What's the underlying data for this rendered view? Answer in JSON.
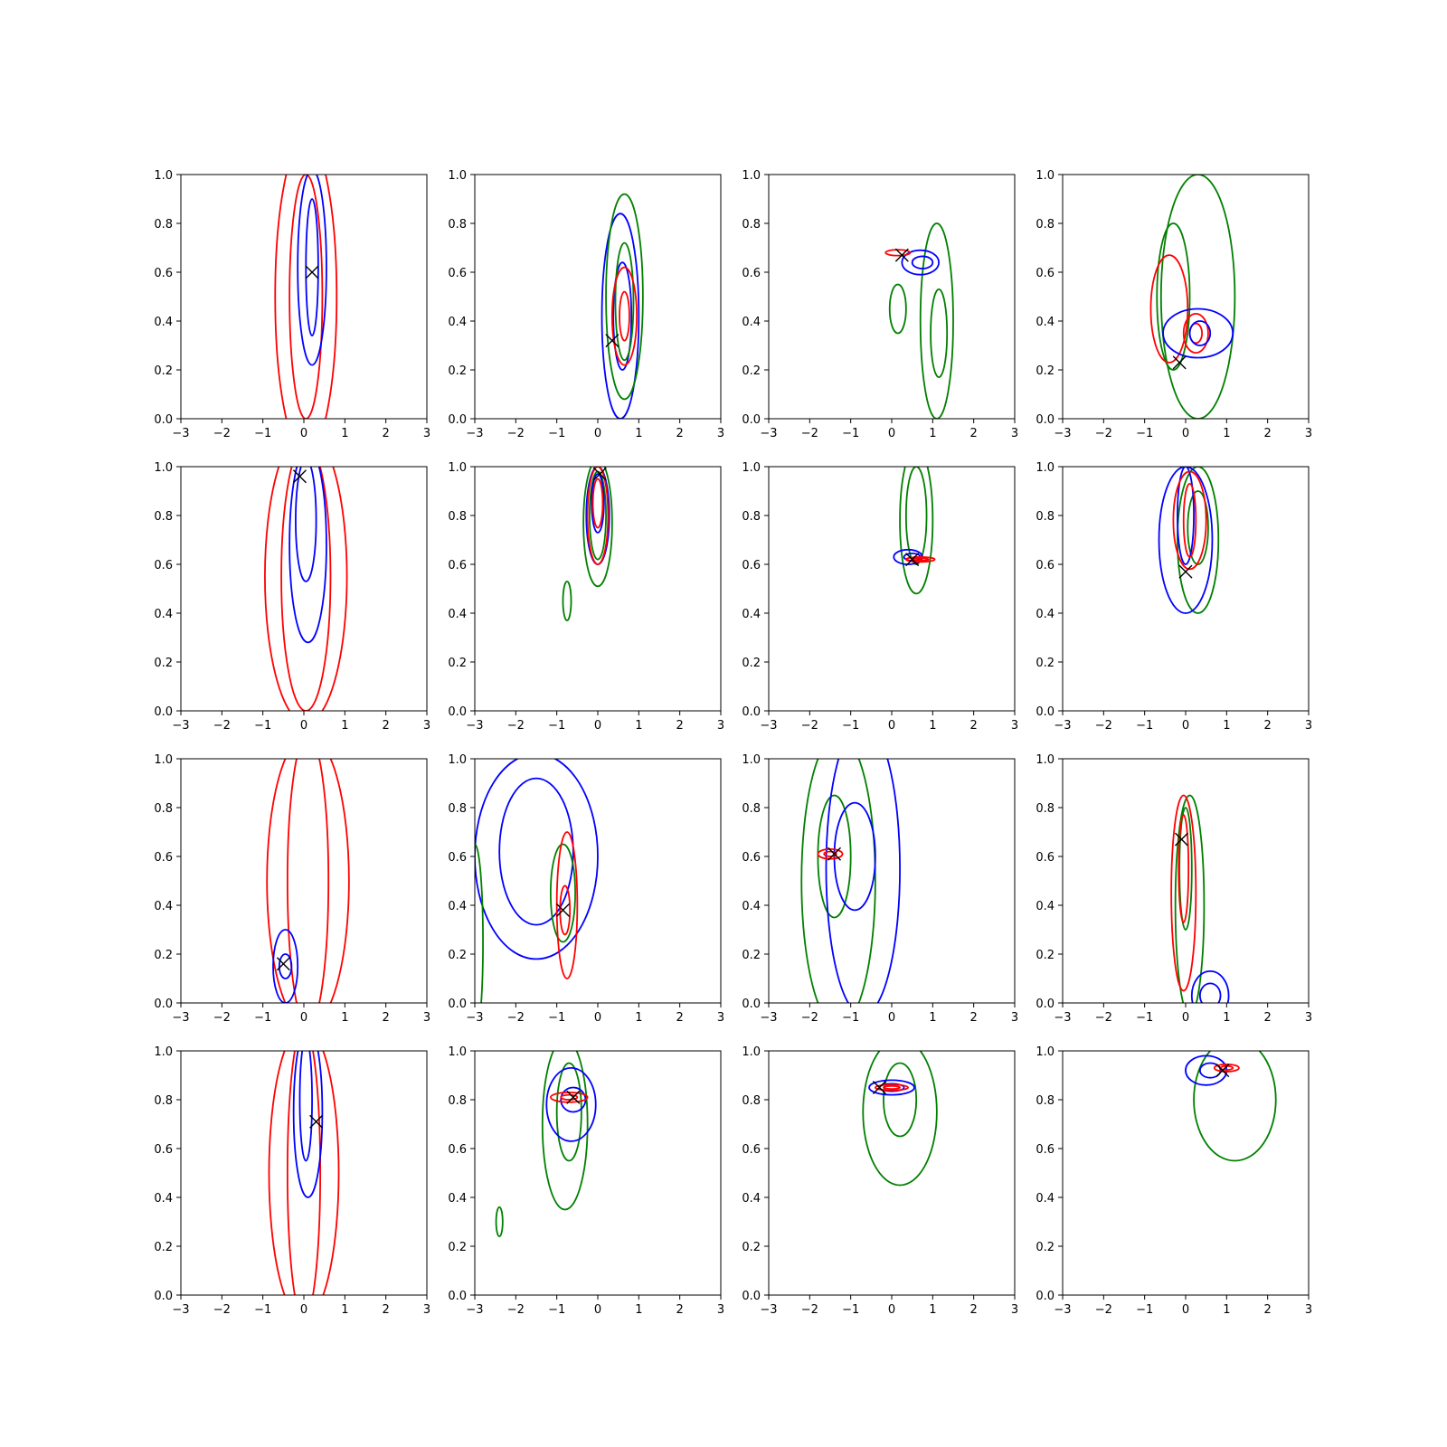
{
  "figure": {
    "rows": 4,
    "cols": 4
  },
  "chart_data": {
    "type": "contour",
    "grid": false,
    "xlim": [
      -3,
      3
    ],
    "ylim": [
      0,
      1
    ],
    "xticks": [
      -3,
      -2,
      -1,
      0,
      1,
      2,
      3
    ],
    "yticks": [
      0.0,
      0.2,
      0.4,
      0.6,
      0.8,
      1.0
    ],
    "xtick_labels": [
      "−3",
      "−2",
      "−1",
      "0",
      "1",
      "2",
      "3"
    ],
    "ytick_labels": [
      "0.0",
      "0.2",
      "0.4",
      "0.6",
      "0.8",
      "1.0"
    ],
    "colors": {
      "red": "#ff0000",
      "blue": "#0000ff",
      "green": "#008000",
      "marker": "#000000"
    },
    "panels": [
      {
        "marker": [
          0.2,
          0.6
        ],
        "contours": [
          {
            "color": "red",
            "cx": 0.05,
            "cy": 0.5,
            "rx": 0.75,
            "ry": 0.65,
            "rot": 0
          },
          {
            "color": "red",
            "cx": 0.05,
            "cy": 0.5,
            "rx": 0.4,
            "ry": 0.5,
            "rot": 0
          },
          {
            "color": "blue",
            "cx": 0.2,
            "cy": 0.62,
            "rx": 0.35,
            "ry": 0.4,
            "rot": 0
          },
          {
            "color": "blue",
            "cx": 0.2,
            "cy": 0.62,
            "rx": 0.15,
            "ry": 0.28,
            "rot": 0
          }
        ]
      },
      {
        "marker": [
          0.35,
          0.32
        ],
        "contours": [
          {
            "color": "blue",
            "cx": 0.55,
            "cy": 0.42,
            "rx": 0.45,
            "ry": 0.42,
            "rot": 0
          },
          {
            "color": "blue",
            "cx": 0.6,
            "cy": 0.42,
            "rx": 0.22,
            "ry": 0.22,
            "rot": 0
          },
          {
            "color": "green",
            "cx": 0.65,
            "cy": 0.5,
            "rx": 0.45,
            "ry": 0.42,
            "rot": 0
          },
          {
            "color": "green",
            "cx": 0.65,
            "cy": 0.48,
            "rx": 0.22,
            "ry": 0.24,
            "rot": 0
          },
          {
            "color": "red",
            "cx": 0.65,
            "cy": 0.42,
            "rx": 0.3,
            "ry": 0.2,
            "rot": 0
          },
          {
            "color": "red",
            "cx": 0.65,
            "cy": 0.42,
            "rx": 0.12,
            "ry": 0.1,
            "rot": 0
          }
        ]
      },
      {
        "marker": [
          0.25,
          0.67
        ],
        "contours": [
          {
            "color": "green",
            "cx": 1.1,
            "cy": 0.4,
            "rx": 0.4,
            "ry": 0.4,
            "rot": 0
          },
          {
            "color": "green",
            "cx": 1.15,
            "cy": 0.35,
            "rx": 0.2,
            "ry": 0.18,
            "rot": 0
          },
          {
            "color": "green",
            "cx": 0.15,
            "cy": 0.45,
            "rx": 0.2,
            "ry": 0.1,
            "rot": 0
          },
          {
            "color": "blue",
            "cx": 0.7,
            "cy": 0.64,
            "rx": 0.45,
            "ry": 0.05,
            "rot": 0
          },
          {
            "color": "blue",
            "cx": 0.75,
            "cy": 0.64,
            "rx": 0.25,
            "ry": 0.025,
            "rot": 0
          },
          {
            "color": "red",
            "cx": 0.15,
            "cy": 0.68,
            "rx": 0.3,
            "ry": 0.012,
            "rot": 0
          }
        ]
      },
      {
        "marker": [
          -0.15,
          0.23
        ],
        "contours": [
          {
            "color": "green",
            "cx": 0.3,
            "cy": 0.5,
            "rx": 0.9,
            "ry": 0.5,
            "rot": 0
          },
          {
            "color": "green",
            "cx": -0.3,
            "cy": 0.5,
            "rx": 0.4,
            "ry": 0.3,
            "rot": 0
          },
          {
            "color": "red",
            "cx": -0.4,
            "cy": 0.45,
            "rx": 0.45,
            "ry": 0.22,
            "rot": 0
          },
          {
            "color": "red",
            "cx": 0.25,
            "cy": 0.35,
            "rx": 0.3,
            "ry": 0.08,
            "rot": 0
          },
          {
            "color": "red",
            "cx": 0.25,
            "cy": 0.35,
            "rx": 0.15,
            "ry": 0.04,
            "rot": 0
          },
          {
            "color": "blue",
            "cx": 0.3,
            "cy": 0.35,
            "rx": 0.85,
            "ry": 0.1,
            "rot": 0
          },
          {
            "color": "blue",
            "cx": 0.35,
            "cy": 0.35,
            "rx": 0.25,
            "ry": 0.05,
            "rot": 0
          }
        ]
      },
      {
        "marker": [
          -0.1,
          0.96
        ],
        "contours": [
          {
            "color": "red",
            "cx": 0.05,
            "cy": 0.55,
            "rx": 1.0,
            "ry": 0.6,
            "rot": 0
          },
          {
            "color": "red",
            "cx": 0.05,
            "cy": 0.55,
            "rx": 0.6,
            "ry": 0.55,
            "rot": 0
          },
          {
            "color": "blue",
            "cx": 0.1,
            "cy": 0.68,
            "rx": 0.45,
            "ry": 0.4,
            "rot": 0
          },
          {
            "color": "blue",
            "cx": 0.05,
            "cy": 0.78,
            "rx": 0.25,
            "ry": 0.25,
            "rot": 0
          }
        ]
      },
      {
        "marker": [
          0.05,
          0.97
        ],
        "contours": [
          {
            "color": "green",
            "cx": 0.0,
            "cy": 0.77,
            "rx": 0.35,
            "ry": 0.26,
            "rot": 0
          },
          {
            "color": "green",
            "cx": 0.0,
            "cy": 0.8,
            "rx": 0.2,
            "ry": 0.18,
            "rot": 0
          },
          {
            "color": "green",
            "cx": -0.75,
            "cy": 0.45,
            "rx": 0.1,
            "ry": 0.08,
            "rot": 0
          },
          {
            "color": "blue",
            "cx": 0.0,
            "cy": 0.8,
            "rx": 0.28,
            "ry": 0.2,
            "rot": 0
          },
          {
            "color": "blue",
            "cx": 0.0,
            "cy": 0.85,
            "rx": 0.15,
            "ry": 0.12,
            "rot": 0
          },
          {
            "color": "red",
            "cx": 0.0,
            "cy": 0.8,
            "rx": 0.25,
            "ry": 0.2,
            "rot": 0
          },
          {
            "color": "red",
            "cx": 0.0,
            "cy": 0.85,
            "rx": 0.12,
            "ry": 0.1,
            "rot": 0
          }
        ]
      },
      {
        "marker": [
          0.5,
          0.62
        ],
        "contours": [
          {
            "color": "green",
            "cx": 0.6,
            "cy": 0.78,
            "rx": 0.4,
            "ry": 0.3,
            "rot": 0
          },
          {
            "color": "green",
            "cx": 0.6,
            "cy": 0.8,
            "rx": 0.25,
            "ry": 0.2,
            "rot": 0
          },
          {
            "color": "blue",
            "cx": 0.4,
            "cy": 0.63,
            "rx": 0.35,
            "ry": 0.03,
            "rot": 0
          },
          {
            "color": "blue",
            "cx": 0.5,
            "cy": 0.63,
            "rx": 0.2,
            "ry": 0.015,
            "rot": 0
          },
          {
            "color": "red",
            "cx": 0.7,
            "cy": 0.62,
            "rx": 0.35,
            "ry": 0.01,
            "rot": 0
          },
          {
            "color": "red",
            "cx": 0.7,
            "cy": 0.62,
            "rx": 0.2,
            "ry": 0.005,
            "rot": 0
          }
        ]
      },
      {
        "marker": [
          0.0,
          0.57
        ],
        "contours": [
          {
            "color": "green",
            "cx": 0.3,
            "cy": 0.7,
            "rx": 0.5,
            "ry": 0.3,
            "rot": 0
          },
          {
            "color": "green",
            "cx": 0.3,
            "cy": 0.75,
            "rx": 0.25,
            "ry": 0.15,
            "rot": 0
          },
          {
            "color": "blue",
            "cx": 0.0,
            "cy": 0.7,
            "rx": 0.65,
            "ry": 0.3,
            "rot": 0
          },
          {
            "color": "blue",
            "cx": 0.0,
            "cy": 0.8,
            "rx": 0.2,
            "ry": 0.2,
            "rot": 0
          },
          {
            "color": "red",
            "cx": 0.1,
            "cy": 0.78,
            "rx": 0.4,
            "ry": 0.2,
            "rot": 0
          },
          {
            "color": "red",
            "cx": 0.1,
            "cy": 0.78,
            "rx": 0.15,
            "ry": 0.15,
            "rot": 0
          }
        ]
      },
      {
        "marker": [
          -0.5,
          0.16
        ],
        "contours": [
          {
            "color": "red",
            "cx": 0.1,
            "cy": 0.5,
            "rx": 1.0,
            "ry": 0.6,
            "rot": 0
          },
          {
            "color": "red",
            "cx": 0.1,
            "cy": 0.5,
            "rx": 0.5,
            "ry": 0.6,
            "rot": 0
          },
          {
            "color": "blue",
            "cx": -0.45,
            "cy": 0.15,
            "rx": 0.3,
            "ry": 0.15,
            "rot": 0
          },
          {
            "color": "blue",
            "cx": -0.45,
            "cy": 0.15,
            "rx": 0.15,
            "ry": 0.05,
            "rot": 0
          }
        ]
      },
      {
        "marker": [
          -0.85,
          0.38
        ],
        "contours": [
          {
            "color": "blue",
            "cx": -1.5,
            "cy": 0.6,
            "rx": 1.5,
            "ry": 0.42,
            "rot": 0
          },
          {
            "color": "blue",
            "cx": -1.5,
            "cy": 0.62,
            "rx": 0.9,
            "ry": 0.3,
            "rot": 0
          },
          {
            "color": "green",
            "cx": -0.85,
            "cy": 0.45,
            "rx": 0.3,
            "ry": 0.2,
            "rot": 0
          },
          {
            "color": "green",
            "cx": -3.0,
            "cy": 0.25,
            "rx": 0.2,
            "ry": 0.4,
            "rot": 0
          },
          {
            "color": "red",
            "cx": -0.75,
            "cy": 0.4,
            "rx": 0.25,
            "ry": 0.3,
            "rot": 0
          },
          {
            "color": "red",
            "cx": -0.8,
            "cy": 0.38,
            "rx": 0.12,
            "ry": 0.1,
            "rot": 0
          }
        ]
      },
      {
        "marker": [
          -1.4,
          0.61
        ],
        "contours": [
          {
            "color": "green",
            "cx": -1.3,
            "cy": 0.5,
            "rx": 0.9,
            "ry": 0.6,
            "rot": 0
          },
          {
            "color": "green",
            "cx": -1.4,
            "cy": 0.6,
            "rx": 0.4,
            "ry": 0.25,
            "rot": 0
          },
          {
            "color": "blue",
            "cx": -0.7,
            "cy": 0.55,
            "rx": 0.9,
            "ry": 0.6,
            "rot": 0
          },
          {
            "color": "blue",
            "cx": -0.9,
            "cy": 0.6,
            "rx": 0.5,
            "ry": 0.22,
            "rot": 0
          },
          {
            "color": "red",
            "cx": -1.5,
            "cy": 0.61,
            "rx": 0.3,
            "ry": 0.02,
            "rot": 0
          },
          {
            "color": "red",
            "cx": -1.5,
            "cy": 0.61,
            "rx": 0.15,
            "ry": 0.01,
            "rot": 0
          }
        ]
      },
      {
        "marker": [
          -0.1,
          0.67
        ],
        "contours": [
          {
            "color": "green",
            "cx": 0.1,
            "cy": 0.4,
            "rx": 0.35,
            "ry": 0.45,
            "rot": 0
          },
          {
            "color": "green",
            "cx": 0.0,
            "cy": 0.55,
            "rx": 0.15,
            "ry": 0.25,
            "rot": 0
          },
          {
            "color": "red",
            "cx": -0.05,
            "cy": 0.45,
            "rx": 0.3,
            "ry": 0.4,
            "rot": 0
          },
          {
            "color": "red",
            "cx": -0.05,
            "cy": 0.55,
            "rx": 0.12,
            "ry": 0.22,
            "rot": 0
          },
          {
            "color": "blue",
            "cx": 0.6,
            "cy": 0.03,
            "rx": 0.45,
            "ry": 0.1,
            "rot": 0
          },
          {
            "color": "blue",
            "cx": 0.6,
            "cy": 0.03,
            "rx": 0.25,
            "ry": 0.05,
            "rot": 0
          }
        ]
      },
      {
        "marker": [
          0.3,
          0.71
        ],
        "contours": [
          {
            "color": "red",
            "cx": 0.0,
            "cy": 0.5,
            "rx": 0.85,
            "ry": 0.6,
            "rot": 0
          },
          {
            "color": "red",
            "cx": 0.0,
            "cy": 0.5,
            "rx": 0.4,
            "ry": 0.6,
            "rot": 0
          },
          {
            "color": "blue",
            "cx": 0.1,
            "cy": 0.75,
            "rx": 0.35,
            "ry": 0.35,
            "rot": 0
          },
          {
            "color": "blue",
            "cx": 0.05,
            "cy": 0.8,
            "rx": 0.15,
            "ry": 0.25,
            "rot": 0
          }
        ]
      },
      {
        "marker": [
          -0.6,
          0.81
        ],
        "contours": [
          {
            "color": "green",
            "cx": -0.8,
            "cy": 0.7,
            "rx": 0.55,
            "ry": 0.35,
            "rot": 0
          },
          {
            "color": "green",
            "cx": -0.7,
            "cy": 0.75,
            "rx": 0.3,
            "ry": 0.2,
            "rot": 0
          },
          {
            "color": "green",
            "cx": -2.4,
            "cy": 0.3,
            "rx": 0.08,
            "ry": 0.06,
            "rot": 0
          },
          {
            "color": "blue",
            "cx": -0.65,
            "cy": 0.78,
            "rx": 0.6,
            "ry": 0.15,
            "rot": 0
          },
          {
            "color": "blue",
            "cx": -0.6,
            "cy": 0.8,
            "rx": 0.3,
            "ry": 0.05,
            "rot": 0
          },
          {
            "color": "red",
            "cx": -0.7,
            "cy": 0.81,
            "rx": 0.45,
            "ry": 0.02,
            "rot": 0
          },
          {
            "color": "red",
            "cx": -0.7,
            "cy": 0.81,
            "rx": 0.2,
            "ry": 0.01,
            "rot": 0
          }
        ]
      },
      {
        "marker": [
          -0.3,
          0.85
        ],
        "contours": [
          {
            "color": "green",
            "cx": 0.2,
            "cy": 0.75,
            "rx": 0.9,
            "ry": 0.3,
            "rot": 0
          },
          {
            "color": "green",
            "cx": 0.2,
            "cy": 0.8,
            "rx": 0.4,
            "ry": 0.15,
            "rot": 0
          },
          {
            "color": "blue",
            "cx": 0.0,
            "cy": 0.85,
            "rx": 0.55,
            "ry": 0.03,
            "rot": 0
          },
          {
            "color": "blue",
            "cx": 0.0,
            "cy": 0.85,
            "rx": 0.3,
            "ry": 0.015,
            "rot": 0
          },
          {
            "color": "red",
            "cx": 0.0,
            "cy": 0.85,
            "rx": 0.4,
            "ry": 0.012,
            "rot": 0
          },
          {
            "color": "red",
            "cx": 0.0,
            "cy": 0.85,
            "rx": 0.2,
            "ry": 0.006,
            "rot": 0
          }
        ]
      },
      {
        "marker": [
          0.9,
          0.92
        ],
        "contours": [
          {
            "color": "green",
            "cx": 1.2,
            "cy": 0.8,
            "rx": 1.0,
            "ry": 0.25,
            "rot": 0
          },
          {
            "color": "blue",
            "cx": 0.5,
            "cy": 0.92,
            "rx": 0.5,
            "ry": 0.06,
            "rot": 0
          },
          {
            "color": "blue",
            "cx": 0.6,
            "cy": 0.92,
            "rx": 0.25,
            "ry": 0.03,
            "rot": 0
          },
          {
            "color": "red",
            "cx": 1.0,
            "cy": 0.93,
            "rx": 0.3,
            "ry": 0.015,
            "rot": 0
          },
          {
            "color": "red",
            "cx": 1.0,
            "cy": 0.93,
            "rx": 0.15,
            "ry": 0.008,
            "rot": 0
          }
        ]
      }
    ]
  }
}
